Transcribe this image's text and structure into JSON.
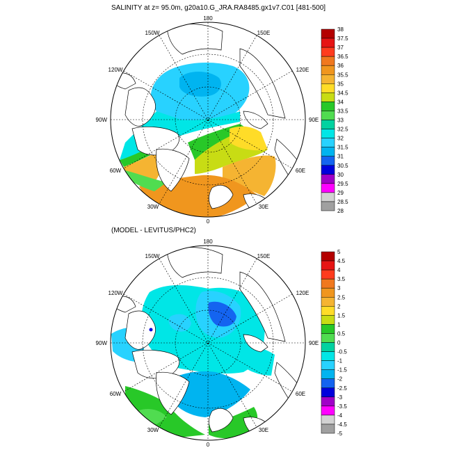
{
  "top_panel": {
    "title": "SALINITY at z=  95.0m, g20a10.G_JRA.RA8485.gx1v7.C01 [481-500]",
    "longitude_labels": {
      "n": "180",
      "nne": "150E",
      "ene": "120E",
      "e": "90E",
      "ese": "60E",
      "sse": "30E",
      "s": "0",
      "ssw": "30W",
      "wsw": "60W",
      "w": "90W",
      "wnw": "120W",
      "nnw": "150W"
    },
    "colorbar": {
      "labels": [
        "38",
        "37.5",
        "37",
        "36.5",
        "36",
        "35.5",
        "35",
        "34.5",
        "34",
        "33.5",
        "33",
        "32.5",
        "32",
        "31.5",
        "31",
        "30.5",
        "30",
        "29.5",
        "29",
        "28.5",
        "28"
      ],
      "colors": [
        "#b40000",
        "#e61414",
        "#ff3c1e",
        "#f0781e",
        "#f0961e",
        "#f5b432",
        "#ffdc28",
        "#c8dc14",
        "#28c828",
        "#50dc50",
        "#00d2a0",
        "#00e6e6",
        "#28d2ff",
        "#00b4f0",
        "#1464f0",
        "#0000dc",
        "#a000c8",
        "#ff00ff",
        "#d2d2d2",
        "#a0a0a0"
      ]
    }
  },
  "bottom_panel": {
    "title": "(MODEL - LEVITUS/PHC2)",
    "longitude_labels": {
      "n": "180",
      "nne": "150E",
      "ene": "120E",
      "e": "90E",
      "ese": "60E",
      "sse": "30E",
      "s": "0",
      "ssw": "30W",
      "wsw": "60W",
      "w": "90W",
      "wnw": "120W",
      "nnw": "150W"
    },
    "colorbar": {
      "labels": [
        "5",
        "4.5",
        "4",
        "3.5",
        "3",
        "2.5",
        "2",
        "1.5",
        "1",
        "0.5",
        "0",
        "-0.5",
        "-1",
        "-1.5",
        "-2",
        "-2.5",
        "-3",
        "-3.5",
        "-4",
        "-4.5",
        "-5"
      ],
      "colors": [
        "#b40000",
        "#e61414",
        "#ff3c1e",
        "#f0781e",
        "#f0961e",
        "#f5b432",
        "#ffdc28",
        "#c8dc14",
        "#28c828",
        "#50dc50",
        "#00d2a0",
        "#00e6e6",
        "#28d2ff",
        "#00b4f0",
        "#1464f0",
        "#0000dc",
        "#a000c8",
        "#ff00ff",
        "#d2d2d2",
        "#a0a0a0"
      ]
    }
  }
}
